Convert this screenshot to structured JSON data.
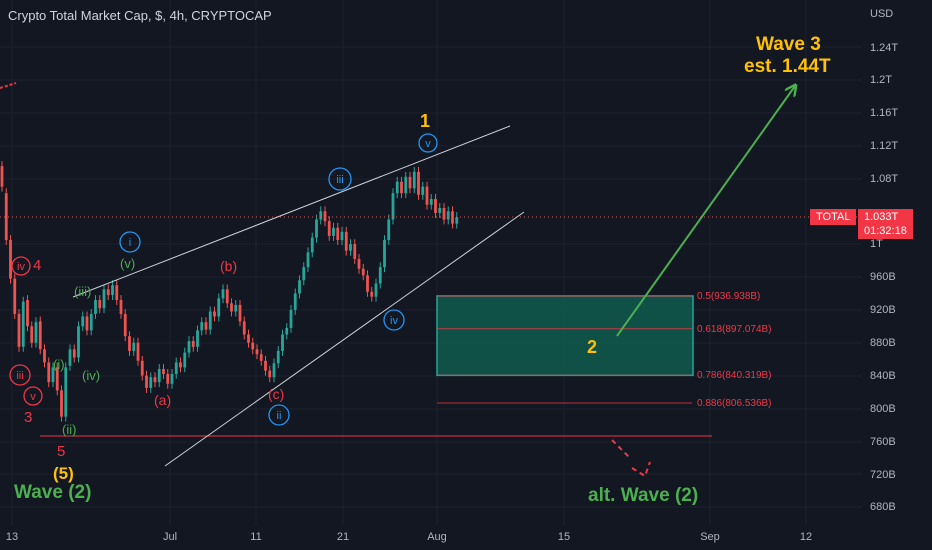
{
  "title": "Crypto Total Market Cap, $, 4h, CRYPTOCAP",
  "axis": {
    "unit": "USD",
    "ticks": [
      "1.24T",
      "1.2T",
      "1.16T",
      "1.12T",
      "1.08T",
      "1T",
      "960B",
      "920B",
      "880B",
      "840B",
      "800B",
      "760B",
      "720B",
      "680B"
    ],
    "x_ticks": [
      "13",
      "Jul",
      "11",
      "21",
      "Aug",
      "15",
      "Sep",
      "12"
    ]
  },
  "price_tag": {
    "symbol": "TOTAL",
    "price": "1.033T",
    "countdown": "01:32:18"
  },
  "fib_levels": [
    {
      "label": "0.5(936.938B)",
      "value": 936.938
    },
    {
      "label": "0.618(897.074B)",
      "value": 897.074
    },
    {
      "label": "0.786(840.319B)",
      "value": 840.319
    },
    {
      "label": "0.886(806.536B)",
      "value": 806.536
    }
  ],
  "annotations": {
    "wave3_line1": "Wave 3",
    "wave3_line2": "est. 1.44T",
    "wave2_target": "2",
    "wave1_top": "1",
    "v_top": "v",
    "iii_circ": "iii",
    "i_circ": "i",
    "iv_circ": "iv",
    "ii_circ": "ii",
    "iv4_circ": "iv",
    "iv4_num": "4",
    "iii_left": "iii",
    "v_left": "v",
    "num3": "3",
    "num5": "5",
    "paren5": "(5)",
    "wave2_left": "Wave (2)",
    "alt_wave2": "alt. Wave (2)",
    "g_iii": "(iii)",
    "g_v": "(v)",
    "g_i": "(i)",
    "g_iv": "(iv)",
    "g_ii": "(ii)",
    "r_b": "(b)",
    "r_a": "(a)",
    "r_c": "(c)"
  },
  "colors": {
    "background": "#131722",
    "up": "#26a69a",
    "down": "#ef5350",
    "red_label": "#f23645",
    "green_label": "#4caf50",
    "blue_label": "#2196f3",
    "yellow_label": "#ffc107"
  },
  "chart_data": {
    "type": "candlestick",
    "series": [
      {
        "name": "TOTAL",
        "values": [
          [
            1095,
            1070
          ],
          [
            1062,
            1005
          ],
          [
            1005,
            958
          ],
          [
            958,
            915
          ],
          [
            915,
            875
          ],
          [
            875,
            930
          ],
          [
            932,
            900
          ],
          [
            900,
            880
          ],
          [
            880,
            905
          ],
          [
            906,
            872
          ],
          [
            872,
            856
          ],
          [
            856,
            832
          ],
          [
            832,
            850
          ],
          [
            850,
            822
          ],
          [
            822,
            790
          ],
          [
            790,
            850
          ],
          [
            852,
            872
          ],
          [
            872,
            862
          ],
          [
            862,
            900
          ],
          [
            900,
            912
          ],
          [
            912,
            895
          ],
          [
            895,
            915
          ],
          [
            915,
            932
          ],
          [
            932,
            922
          ],
          [
            922,
            945
          ],
          [
            945,
            938
          ],
          [
            938,
            950
          ],
          [
            950,
            932
          ],
          [
            932,
            915
          ],
          [
            915,
            888
          ],
          [
            888,
            870
          ],
          [
            870,
            880
          ],
          [
            880,
            858
          ],
          [
            858,
            840
          ],
          [
            840,
            825
          ],
          [
            825,
            838
          ],
          [
            838,
            832
          ],
          [
            832,
            848
          ],
          [
            848,
            842
          ],
          [
            842,
            830
          ],
          [
            830,
            842
          ],
          [
            842,
            856
          ],
          [
            856,
            850
          ],
          [
            850,
            868
          ],
          [
            868,
            882
          ],
          [
            882,
            875
          ],
          [
            875,
            895
          ],
          [
            895,
            905
          ],
          [
            905,
            896
          ],
          [
            896,
            918
          ],
          [
            918,
            912
          ],
          [
            912,
            934
          ],
          [
            934,
            945
          ],
          [
            945,
            928
          ],
          [
            928,
            918
          ],
          [
            918,
            926
          ],
          [
            926,
            906
          ],
          [
            906,
            890
          ],
          [
            890,
            880
          ],
          [
            880,
            872
          ],
          [
            872,
            866
          ],
          [
            866,
            858
          ],
          [
            858,
            846
          ],
          [
            846,
            838
          ],
          [
            838,
            855
          ],
          [
            855,
            870
          ],
          [
            870,
            890
          ],
          [
            890,
            898
          ],
          [
            898,
            920
          ],
          [
            920,
            940
          ],
          [
            940,
            956
          ],
          [
            956,
            972
          ],
          [
            972,
            990
          ],
          [
            990,
            1008
          ],
          [
            1008,
            1030
          ],
          [
            1030,
            1040
          ],
          [
            1040,
            1028
          ],
          [
            1028,
            1010
          ],
          [
            1010,
            1020
          ],
          [
            1020,
            1005
          ],
          [
            1005,
            1015
          ],
          [
            1015,
            992
          ],
          [
            992,
            1000
          ],
          [
            1000,
            982
          ],
          [
            982,
            970
          ],
          [
            970,
            962
          ],
          [
            962,
            942
          ],
          [
            942,
            936
          ],
          [
            936,
            952
          ],
          [
            952,
            972
          ],
          [
            972,
            1005
          ],
          [
            1005,
            1030
          ],
          [
            1030,
            1062
          ],
          [
            1062,
            1076
          ],
          [
            1076,
            1062
          ],
          [
            1062,
            1082
          ],
          [
            1082,
            1068
          ],
          [
            1068,
            1088
          ],
          [
            1088,
            1060
          ],
          [
            1060,
            1070
          ],
          [
            1070,
            1048
          ],
          [
            1048,
            1055
          ],
          [
            1055,
            1038
          ],
          [
            1038,
            1044
          ],
          [
            1044,
            1030
          ],
          [
            1030,
            1040
          ],
          [
            1040,
            1025
          ],
          [
            1025,
            1033
          ]
        ]
      }
    ],
    "ylim": [
      676,
      1264
    ],
    "y_axis_label": "USD"
  }
}
